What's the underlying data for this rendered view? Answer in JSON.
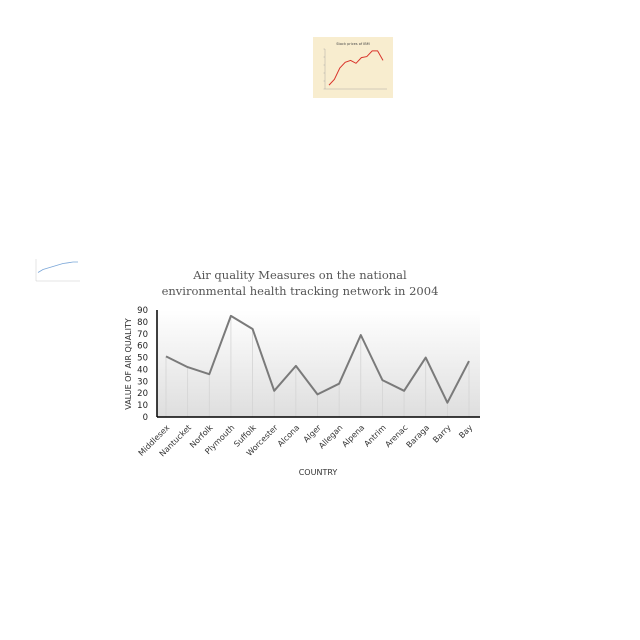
{
  "chart_data": [
    {
      "type": "line",
      "title": "Air quality Measures on the national environmental health tracking network in 2004",
      "xlabel": "COUNTRY",
      "ylabel": "VALUE OF AIR QUALITY",
      "categories": [
        "Middlesex",
        "Nantucket",
        "Norfolk",
        "Plymouth",
        "Suffolk",
        "Worcester",
        "Alcona",
        "Alger",
        "Allegan",
        "Alpena",
        "Antrim",
        "Arenac",
        "Baraga",
        "Barry",
        "Bay"
      ],
      "series": [
        {
          "values": [
            51,
            42,
            36,
            85,
            74,
            22,
            43,
            19,
            28,
            69,
            31,
            22,
            50,
            12,
            47
          ]
        }
      ],
      "ylim": [
        0,
        90
      ],
      "yticks": [
        0,
        10,
        20,
        30,
        40,
        50,
        60,
        70,
        80,
        90
      ],
      "grid": false,
      "colors": {
        "line": "#7a7a7a",
        "axis": "#000000"
      }
    },
    {
      "type": "line",
      "title": "Stock prices of IBM",
      "series": [
        {
          "values": [
            2,
            8,
            20,
            26,
            28,
            25,
            31,
            32,
            38,
            38,
            28
          ]
        }
      ],
      "colors": {
        "background": "#f8edcf",
        "line": "#d9342b"
      }
    },
    {
      "type": "line",
      "series": [
        {
          "values": [
            3,
            5,
            6,
            7,
            8,
            9,
            9.5,
            10,
            10
          ]
        }
      ],
      "colors": {
        "line": "#7aa6d8"
      }
    }
  ]
}
